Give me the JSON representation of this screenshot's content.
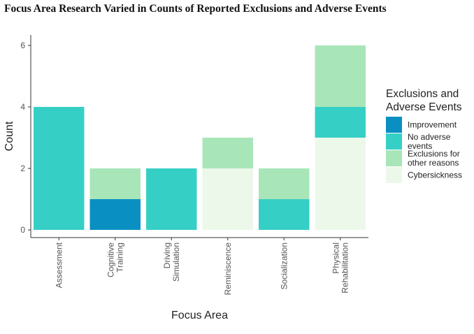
{
  "chart_data": {
    "type": "bar",
    "stacked": true,
    "title": "Focus Area Research Varied in Counts of Reported Exclusions and Adverse Events",
    "xlabel": "Focus Area",
    "ylabel": "Count",
    "ylim": [
      0,
      6
    ],
    "yticks": [
      0,
      2,
      4,
      6
    ],
    "grid": false,
    "categories": [
      [
        "Assessment"
      ],
      [
        "Cognitive",
        "Training"
      ],
      [
        "Driving",
        "Simulation"
      ],
      [
        "Reminiscence"
      ],
      [
        "Socialization"
      ],
      [
        "Physical",
        "Rehabilitation"
      ]
    ],
    "legend": {
      "title": [
        "Exclusions and",
        "Adverse Events"
      ],
      "position": "right",
      "entries": [
        {
          "label": [
            "Improvement"
          ],
          "color": "#0a8fc3"
        },
        {
          "label": [
            "No adverse",
            "events"
          ],
          "color": "#36cfc6"
        },
        {
          "label": [
            "Exclusions for",
            "other reasons"
          ],
          "color": "#a8e6b9"
        },
        {
          "label": [
            "Cybersickness"
          ],
          "color": "#ecf8ea"
        }
      ]
    },
    "series": [
      {
        "name": "Cybersickness",
        "color": "#ecf8ea",
        "values": [
          0,
          0,
          0,
          2,
          0,
          3
        ]
      },
      {
        "name": "No adverse events",
        "color": "#36cfc6",
        "values": [
          4,
          0,
          2,
          0,
          1,
          1
        ]
      },
      {
        "name": "Improvement",
        "color": "#0a8fc3",
        "values": [
          0,
          1,
          0,
          0,
          0,
          0
        ]
      },
      {
        "name": "Exclusions for other reasons",
        "color": "#a8e6b9",
        "values": [
          0,
          1,
          0,
          1,
          1,
          2
        ]
      }
    ]
  }
}
